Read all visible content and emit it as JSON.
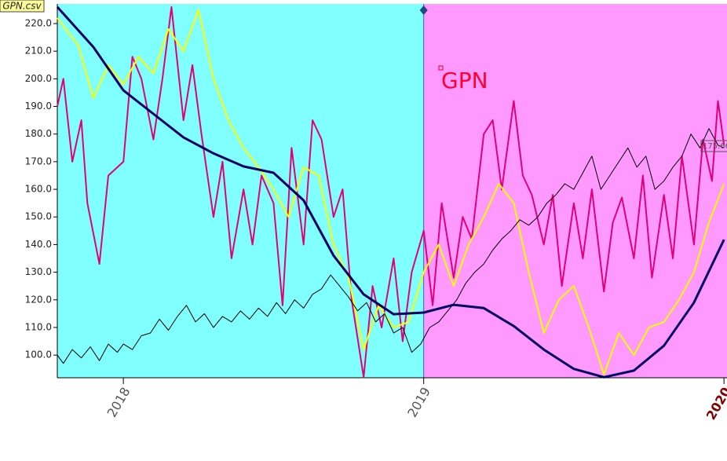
{
  "chart_data": {
    "type": "line",
    "title": "GPN",
    "file_label": "GPN.csv",
    "last_label": "175.66",
    "xlim": [
      2017.78,
      2020.01
    ],
    "xticks": [
      2018,
      2019,
      2020
    ],
    "ylim": [
      91.8,
      227.1
    ],
    "yticks": [
      {
        "value": 100,
        "label": "100.0"
      },
      {
        "value": 110,
        "label": "110.0"
      },
      {
        "value": 120,
        "label": "120.0"
      },
      {
        "value": 130,
        "label": "130.0"
      },
      {
        "value": 140,
        "label": "140.0"
      },
      {
        "value": 150,
        "label": "150.0"
      },
      {
        "value": 160,
        "label": "160.0"
      },
      {
        "value": 170,
        "label": "170.0"
      },
      {
        "value": 180,
        "label": "180.0"
      },
      {
        "value": 190,
        "label": "190.0"
      },
      {
        "value": 200,
        "label": "200.0"
      },
      {
        "value": 210,
        "label": "210.0"
      },
      {
        "value": 220,
        "label": "220.0"
      }
    ],
    "shading": [
      {
        "start": 2017.78,
        "end": 2019,
        "color": "#80ffff"
      },
      {
        "start": 2019,
        "end": 2020.01,
        "color": "#ff99ff"
      }
    ],
    "series": [
      {
        "color": "#e0007a",
        "x": [
          2017.78,
          2017.8,
          2017.83,
          2017.86,
          2017.88,
          2017.92,
          2017.95,
          2018.0,
          2018.03,
          2018.06,
          2018.1,
          2018.13,
          2018.16,
          2018.2,
          2018.23,
          2018.26,
          2018.3,
          2018.33,
          2018.36,
          2018.4,
          2018.43,
          2018.46,
          2018.5,
          2018.53,
          2018.56,
          2018.6,
          2018.63,
          2018.66,
          2018.7,
          2018.73,
          2018.76,
          2018.8,
          2018.83,
          2018.86,
          2018.9,
          2018.93,
          2018.96,
          2019.0,
          2019.03,
          2019.06,
          2019.1,
          2019.13,
          2019.16,
          2019.2,
          2019.23,
          2019.26,
          2019.3,
          2019.33,
          2019.36,
          2019.4,
          2019.43,
          2019.46,
          2019.5,
          2019.53,
          2019.56,
          2019.6,
          2019.63,
          2019.66,
          2019.7,
          2019.73,
          2019.76,
          2019.8,
          2019.83,
          2019.86,
          2019.9,
          2019.93,
          2019.96,
          2019.98,
          2020.0
        ],
        "values": [
          190,
          200,
          170,
          185,
          155,
          133,
          165,
          170,
          208,
          200,
          178,
          200,
          226,
          185,
          205,
          180,
          150,
          170,
          135,
          160,
          140,
          165,
          155,
          118,
          175,
          140,
          185,
          178,
          150,
          160,
          120,
          92,
          125,
          110,
          135,
          105,
          130,
          145,
          118,
          155,
          128,
          150,
          142,
          180,
          185,
          160,
          192,
          165,
          158,
          140,
          158,
          125,
          155,
          135,
          160,
          123,
          148,
          157,
          135,
          165,
          128,
          158,
          135,
          172,
          140,
          178,
          163,
          192,
          176
        ]
      },
      {
        "color": "#ffff00",
        "x": [
          2017.78,
          2017.85,
          2017.9,
          2017.95,
          2018.0,
          2018.05,
          2018.1,
          2018.15,
          2018.2,
          2018.25,
          2018.3,
          2018.35,
          2018.4,
          2018.45,
          2018.5,
          2018.55,
          2018.6,
          2018.65,
          2018.7,
          2018.75,
          2018.8,
          2018.85,
          2018.9,
          2018.95,
          2019.0,
          2019.05,
          2019.1,
          2019.15,
          2019.2,
          2019.25,
          2019.3,
          2019.35,
          2019.4,
          2019.45,
          2019.5,
          2019.55,
          2019.6,
          2019.65,
          2019.7,
          2019.75,
          2019.8,
          2019.85,
          2019.9,
          2019.95,
          2020.0
        ],
        "values": [
          222,
          212,
          193,
          205,
          198,
          208,
          202,
          218,
          210,
          225,
          200,
          185,
          175,
          168,
          160,
          150,
          168,
          165,
          140,
          128,
          102,
          118,
          110,
          112,
          130,
          140,
          125,
          140,
          150,
          162,
          155,
          130,
          108,
          120,
          125,
          110,
          93,
          108,
          100,
          110,
          112,
          120,
          130,
          148,
          162
        ]
      },
      {
        "color": "#000000",
        "x": [
          2017.78,
          2017.8,
          2017.83,
          2017.86,
          2017.89,
          2017.92,
          2017.95,
          2017.98,
          2018.0,
          2018.03,
          2018.06,
          2018.09,
          2018.12,
          2018.15,
          2018.18,
          2018.21,
          2018.24,
          2018.27,
          2018.3,
          2018.33,
          2018.36,
          2018.39,
          2018.42,
          2018.45,
          2018.48,
          2018.51,
          2018.54,
          2018.57,
          2018.6,
          2018.63,
          2018.66,
          2018.69,
          2018.72,
          2018.75,
          2018.78,
          2018.81,
          2018.84,
          2018.87,
          2018.9,
          2018.93,
          2018.96,
          2018.99,
          2019.02,
          2019.05,
          2019.08,
          2019.11,
          2019.14,
          2019.17,
          2019.2,
          2019.23,
          2019.26,
          2019.29,
          2019.32,
          2019.35,
          2019.38,
          2019.41,
          2019.44,
          2019.47,
          2019.5,
          2019.53,
          2019.56,
          2019.59,
          2019.62,
          2019.65,
          2019.68,
          2019.71,
          2019.74,
          2019.77,
          2019.8,
          2019.83,
          2019.86,
          2019.89,
          2019.92,
          2019.95,
          2019.98,
          2020.0
        ],
        "values": [
          100,
          97,
          102,
          99,
          103,
          98,
          104,
          101,
          104,
          102,
          107,
          108,
          113,
          109,
          114,
          118,
          112,
          115,
          110,
          114,
          112,
          116,
          113,
          117,
          114,
          119,
          115,
          120,
          117,
          122,
          124,
          129,
          125,
          121,
          116,
          119,
          112,
          115,
          108,
          110,
          101,
          104,
          110,
          112,
          116,
          120,
          126,
          130,
          133,
          138,
          142,
          145,
          149,
          147,
          150,
          155,
          158,
          162,
          160,
          166,
          172,
          160,
          165,
          170,
          175,
          168,
          172,
          160,
          163,
          168,
          172,
          180,
          175,
          182,
          176,
          175
        ]
      },
      {
        "color": "#000066",
        "x": [
          2017.78,
          2017.9,
          2018.0,
          2018.1,
          2018.2,
          2018.3,
          2018.4,
          2018.5,
          2018.6,
          2018.7,
          2018.8,
          2018.9,
          2019.0,
          2019.1,
          2019.2,
          2019.3,
          2019.4,
          2019.5,
          2019.6,
          2019.7,
          2019.8,
          2019.9,
          2020.0
        ],
        "values": [
          226,
          211.5,
          195.8,
          187.3,
          178.8,
          173,
          168.3,
          166,
          156,
          136,
          122,
          114.8,
          115.4,
          118.2,
          117,
          110.5,
          102,
          95,
          92,
          94.4,
          103.4,
          119,
          141.8
        ]
      }
    ]
  }
}
